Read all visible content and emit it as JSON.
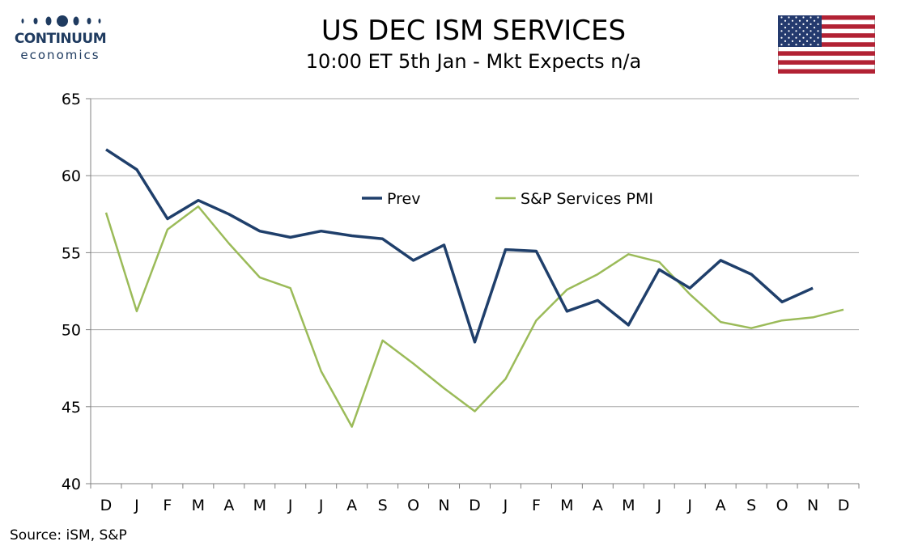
{
  "logo": {
    "name": "CONTINUUM",
    "sub": "economics"
  },
  "header": {
    "title": "US DEC ISM SERVICES",
    "subtitle": "10:00 ET 5th Jan - Mkt Expects n/a"
  },
  "flag": "us-flag-icon",
  "source": "Source: iSM, S&P",
  "colors": {
    "prev": "#1f3f6b",
    "sp": "#9bbb59",
    "grid": "#a6a6a6",
    "brand": "#1f3b60"
  },
  "chart_data": {
    "type": "line",
    "categories": [
      "D",
      "J",
      "F",
      "M",
      "A",
      "M",
      "J",
      "J",
      "A",
      "S",
      "O",
      "N",
      "D",
      "J",
      "F",
      "M",
      "A",
      "M",
      "J",
      "J",
      "A",
      "S",
      "O",
      "N",
      "D"
    ],
    "ylim": [
      40,
      65
    ],
    "yticks": [
      40,
      45,
      50,
      55,
      60,
      65
    ],
    "grid": true,
    "legend": "top-center",
    "series": [
      {
        "name": "Prev",
        "color": "#1f3f6b",
        "values": [
          61.7,
          60.4,
          57.2,
          58.4,
          57.5,
          56.4,
          56.0,
          56.4,
          56.1,
          55.9,
          54.5,
          55.5,
          49.2,
          55.2,
          55.1,
          51.2,
          51.9,
          50.3,
          53.9,
          52.7,
          54.5,
          53.6,
          51.8,
          52.7,
          null
        ]
      },
      {
        "name": "S&P Services PMI",
        "color": "#9bbb59",
        "values": [
          57.6,
          51.2,
          56.5,
          58.0,
          55.6,
          53.4,
          52.7,
          47.3,
          43.7,
          49.3,
          47.8,
          46.2,
          44.7,
          46.8,
          50.6,
          52.6,
          53.6,
          54.9,
          54.4,
          52.3,
          50.5,
          50.1,
          50.6,
          50.8,
          51.3
        ]
      }
    ]
  }
}
